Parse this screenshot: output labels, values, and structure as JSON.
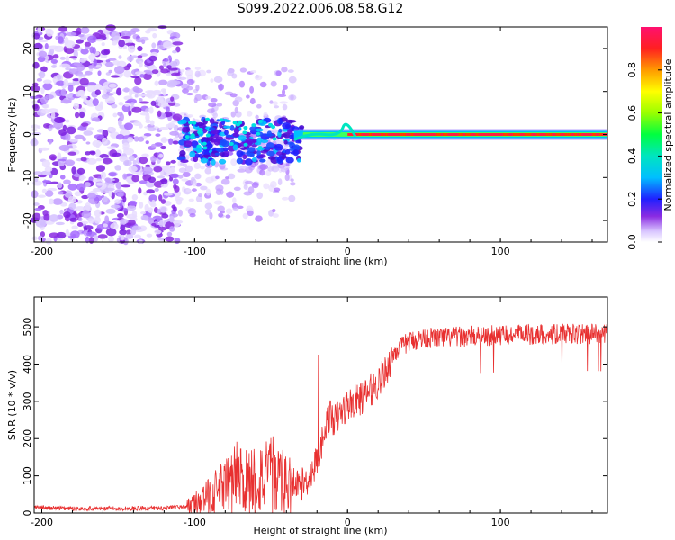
{
  "chart_data": [
    {
      "type": "heatmap",
      "title": "S099.2022.006.08.58.G12",
      "xlabel": "Height of straight line (km)",
      "ylabel": "Frequency (Hz)",
      "xlim": [
        -205,
        170
      ],
      "ylim": [
        -25,
        25
      ],
      "xticks": [
        -200,
        -100,
        0,
        100
      ],
      "yticks": [
        -20,
        -10,
        0,
        10,
        20
      ],
      "colorbar": {
        "label": "Normalized spectral amplitude",
        "range": [
          0,
          1
        ],
        "ticks": [
          0.0,
          0.2,
          0.4,
          0.6,
          0.8
        ]
      },
      "description_regions": {
        "noise_region_km": [
          -205,
          -110
        ],
        "scattered_signal_km": [
          -110,
          -40
        ],
        "transition_km": [
          -40,
          0
        ],
        "carrier_line_km": [
          0,
          170
        ],
        "carrier_frequency_hz": 0
      }
    },
    {
      "type": "line",
      "xlabel": "Height of straight line (km)",
      "ylabel": "SNR (10 * v/v)",
      "xlim": [
        -205,
        170
      ],
      "ylim": [
        0,
        580
      ],
      "xticks": [
        -200,
        -100,
        0,
        100
      ],
      "yticks": [
        0,
        100,
        200,
        300,
        400,
        500
      ],
      "color": "#e83030",
      "series": [
        {
          "name": "SNR",
          "x": [
            -205,
            -180,
            -150,
            -120,
            -105,
            -95,
            -85,
            -75,
            -65,
            -55,
            -45,
            -35,
            -28,
            -22,
            -18,
            -15,
            -12,
            -8,
            -5,
            0,
            5,
            10,
            15,
            20,
            25,
            30,
            40,
            50,
            60,
            80,
            100,
            120,
            140,
            160,
            170
          ],
          "values": [
            15,
            12,
            12,
            13,
            18,
            35,
            60,
            80,
            90,
            95,
            85,
            70,
            80,
            120,
            170,
            230,
            260,
            250,
            265,
            290,
            300,
            310,
            330,
            350,
            380,
            430,
            460,
            470,
            470,
            475,
            478,
            480,
            480,
            482,
            480
          ]
        }
      ]
    }
  ]
}
